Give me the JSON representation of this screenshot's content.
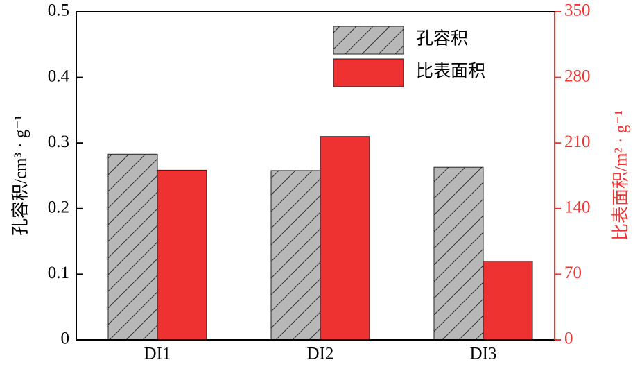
{
  "chart_data": {
    "type": "bar",
    "categories": [
      "DI1",
      "DI2",
      "DI3"
    ],
    "y_label": "孔容积/cm³ · g⁻¹",
    "y2_label": "比表面积/m² · g⁻¹",
    "series": [
      {
        "name": "孔容积",
        "color": "#b8b8b8",
        "hatch": true,
        "values": [
          0.283,
          0.258,
          0.263
        ]
      },
      {
        "name": "比表面积",
        "color": "#ee3131",
        "axis": "y2",
        "values": [
          181,
          217,
          84
        ]
      }
    ],
    "ylim": [
      0,
      0.5
    ],
    "yticks": [
      0,
      0.1,
      0.2,
      0.3,
      0.4,
      0.5
    ],
    "y2lim": [
      0,
      350
    ],
    "y2ticks": [
      0,
      70,
      140,
      210,
      280,
      350
    ],
    "y2_color": "#ee3131",
    "legend": "top-right"
  }
}
